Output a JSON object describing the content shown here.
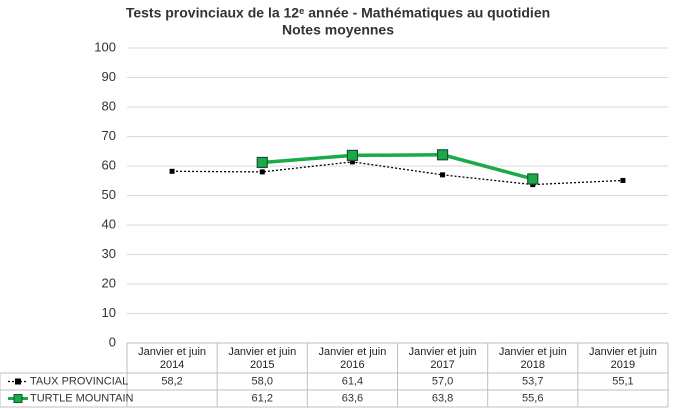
{
  "chart_data": {
    "type": "line",
    "title": "Tests provinciaux de la 12ᵉ année - Mathématiques au quotidien",
    "subtitle": "Notes moyennes",
    "categories": [
      "Janvier et juin 2014",
      "Janvier et juin 2015",
      "Janvier et juin 2016",
      "Janvier et juin 2017",
      "Janvier et juin 2018",
      "Janvier et juin 2019"
    ],
    "series": [
      {
        "name": "TAUX PROVINCIAL",
        "color": "#000000",
        "values": [
          58.2,
          58.0,
          61.4,
          57.0,
          53.7,
          55.1
        ],
        "value_labels": [
          "58,2",
          "58,0",
          "61,4",
          "57,0",
          "53,7",
          "55,1"
        ]
      },
      {
        "name": "TURTLE MOUNTAIN",
        "color": "#1aaa4a",
        "values": [
          null,
          61.2,
          63.6,
          63.8,
          55.6,
          null
        ],
        "value_labels": [
          null,
          "61,2",
          "63,6",
          "63,8",
          "55,6",
          null
        ]
      }
    ],
    "ylim": [
      0,
      100
    ],
    "yticks": [
      0,
      10,
      20,
      30,
      40,
      50,
      60,
      70,
      80,
      90,
      100
    ],
    "grid": true
  }
}
